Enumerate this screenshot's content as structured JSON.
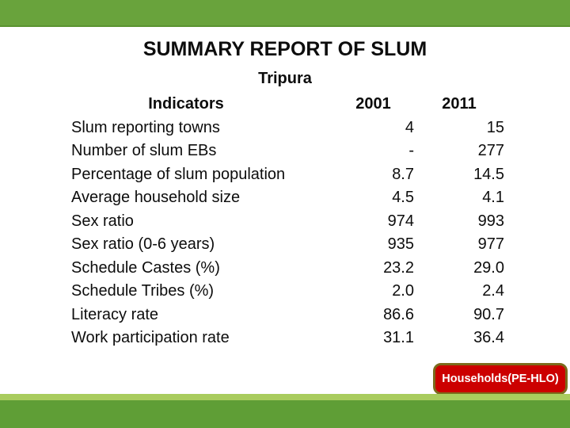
{
  "slide": {
    "title": "SUMMARY REPORT OF SLUM",
    "subtitle": "Tripura"
  },
  "table": {
    "headers": {
      "indicator": "Indicators",
      "y2001": "2001",
      "y2011": "2011"
    },
    "rows": [
      {
        "indicator": "Slum reporting towns",
        "y2001": "4",
        "y2011": "15"
      },
      {
        "indicator": "Number of slum EBs",
        "y2001": "-",
        "y2011": "277"
      },
      {
        "indicator": "Percentage of slum population",
        "y2001": "8.7",
        "y2011": "14.5"
      },
      {
        "indicator": "Average household size",
        "y2001": "4.5",
        "y2011": "4.1"
      },
      {
        "indicator": "Sex ratio",
        "y2001": "974",
        "y2011": "993"
      },
      {
        "indicator": "Sex ratio (0-6 years)",
        "y2001": "935",
        "y2011": "977"
      },
      {
        "indicator": "Schedule Castes (%)",
        "y2001": "23.2",
        "y2011": "29.0"
      },
      {
        "indicator": "Schedule Tribes (%)",
        "y2001": "2.0",
        "y2011": "2.4"
      },
      {
        "indicator": "Literacy rate",
        "y2001": "86.6",
        "y2011": "90.7"
      },
      {
        "indicator": "Work participation rate",
        "y2001": "31.1",
        "y2011": "36.4"
      }
    ]
  },
  "footer": {
    "button_label": "Households(PE-HLO)"
  },
  "colors": {
    "top_bar_green": "#69a33c",
    "top_bar_edge": "#5a9330",
    "bottom_bar_green": "#5f9e36",
    "bottom_strip_green": "#a9cc5e",
    "button_red": "#cc0000",
    "button_border_olive": "#7b6b1c",
    "text_black": "#0d0d0d"
  }
}
